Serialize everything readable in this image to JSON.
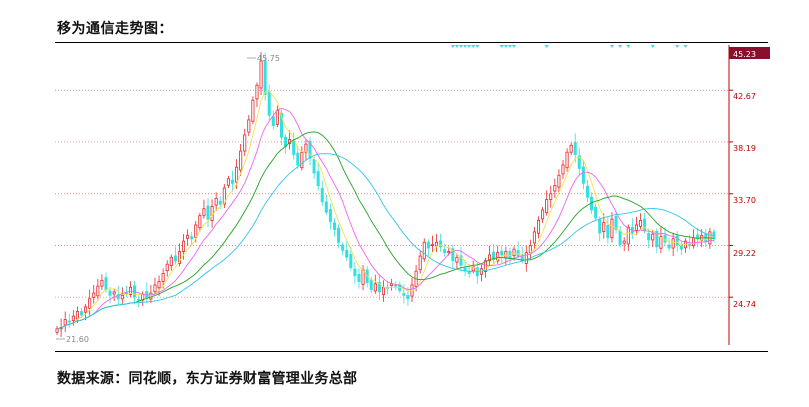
{
  "header": {
    "title": "移为通信走势图："
  },
  "footer": {
    "source": "数据来源：同花顺，东方证券财富管理业务总部"
  },
  "chart_data": {
    "type": "candlestick",
    "title": "移为通信走势图：",
    "y_ticks": [
      "42.67",
      "38.19",
      "33.70",
      "29.22",
      "24.74"
    ],
    "ylim": [
      20.6,
      46.5
    ],
    "grid": "horizontal dotted",
    "last_price_label": "45.23",
    "high_annotation": "45.75",
    "low_annotation": "21.60",
    "moving_averages": [
      "yellow",
      "magenta",
      "green",
      "cyan"
    ],
    "colors": {
      "up": "#e8262c",
      "down": "#33e0e0",
      "axis": "#c00000",
      "price_tag_bg": "#8a0f2c",
      "ma_yellow": "#f5e04a",
      "ma_magenta": "#ee66ee",
      "ma_green": "#22a322",
      "ma_cyan": "#33c3e8"
    },
    "close_series": [
      22.0,
      22.1,
      22.8,
      22.6,
      23.1,
      23.5,
      23.2,
      23.9,
      24.6,
      25.1,
      25.7,
      26.2,
      25.4,
      24.9,
      25.2,
      24.6,
      24.9,
      25.1,
      25.6,
      24.8,
      24.5,
      25.0,
      24.7,
      25.1,
      25.8,
      26.1,
      26.8,
      27.6,
      28.2,
      27.9,
      28.7,
      29.6,
      30.1,
      29.8,
      31.0,
      31.8,
      32.4,
      31.5,
      32.6,
      33.3,
      32.8,
      34.2,
      35.0,
      34.6,
      36.0,
      37.4,
      38.8,
      40.1,
      41.8,
      43.1,
      45.2,
      42.3,
      40.5,
      39.6,
      40.9,
      38.6,
      37.8,
      38.4,
      37.1,
      36.2,
      37.3,
      38.0,
      36.8,
      35.5,
      34.4,
      33.0,
      32.1,
      31.3,
      30.6,
      29.5,
      28.8,
      28.2,
      27.3,
      26.6,
      26.1,
      27.1,
      26.0,
      25.4,
      25.9,
      25.2,
      25.6,
      25.5,
      25.9,
      25.7,
      25.3,
      24.9,
      24.6,
      25.8,
      27.0,
      28.3,
      29.5,
      29.0,
      29.3,
      29.5,
      29.1,
      28.6,
      28.7,
      27.9,
      28.2,
      27.5,
      27.0,
      26.8,
      27.4,
      26.6,
      27.2,
      27.9,
      28.4,
      28.0,
      28.6,
      28.4,
      28.7,
      28.1,
      28.9,
      28.3,
      27.9,
      28.6,
      29.2,
      30.4,
      31.4,
      32.3,
      33.2,
      33.7,
      34.4,
      35.3,
      36.2,
      37.3,
      37.9,
      37.1,
      35.9,
      34.6,
      33.4,
      32.3,
      31.6,
      30.3,
      31.2,
      29.9,
      31.5,
      30.6,
      29.3,
      29.6,
      30.8,
      30.3,
      31.0,
      31.4,
      30.5,
      29.7,
      30.2,
      29.1,
      30.0,
      29.5,
      29.0,
      29.8,
      29.3,
      28.9,
      29.6,
      29.2,
      29.9,
      29.8,
      30.1,
      29.6,
      30.4,
      29.8
    ]
  }
}
